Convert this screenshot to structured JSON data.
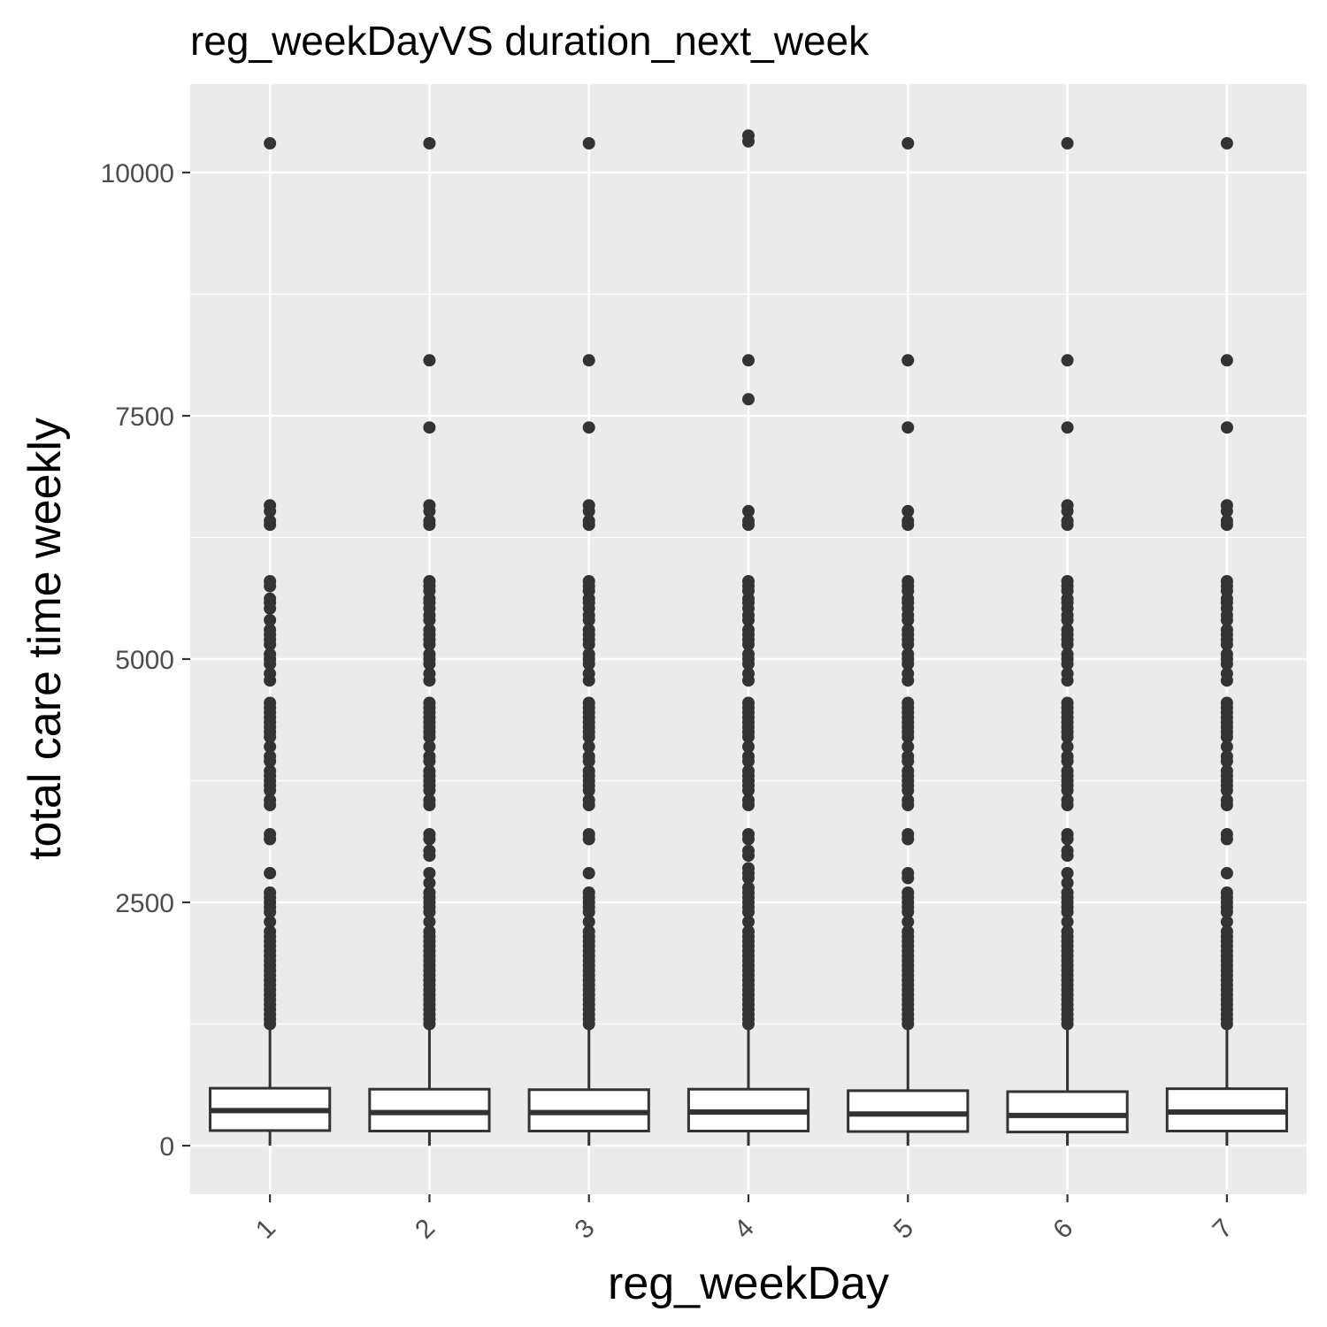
{
  "chart_data": {
    "type": "boxplot",
    "title": "reg_weekDayVS duration_next_week",
    "xlabel": "reg_weekDay",
    "ylabel": "total care time weekly",
    "categories": [
      "1",
      "2",
      "3",
      "4",
      "5",
      "6",
      "7"
    ],
    "y_ticks": [
      0,
      2500,
      5000,
      7500,
      10000
    ],
    "ylim": [
      -500,
      10800
    ],
    "grid": true,
    "colors": {
      "panel": "#ebebeb",
      "grid": "#ffffff",
      "box_fill": "#ffffff",
      "stroke": "#333333",
      "outlier": "#333333"
    },
    "boxes": [
      {
        "category": "1",
        "q1": 155,
        "median": 360,
        "q3": 590,
        "whisker_low": 0,
        "whisker_high": 1200,
        "outliers": [
          10300,
          6580,
          6520,
          6420,
          6380,
          5800,
          5750,
          5620,
          5580,
          5520,
          5400,
          5300,
          5250,
          5200,
          5150,
          5050,
          5000,
          4950,
          4850,
          4780,
          4550,
          4500,
          4450,
          4400,
          4350,
          4300,
          4250,
          4200,
          4100,
          4000,
          3950,
          3850,
          3800,
          3750,
          3700,
          3650,
          3550,
          3500,
          3200,
          3150,
          2800,
          2600,
          2550,
          2500,
          2450,
          2400,
          2300,
          2200,
          2150,
          2100,
          2050,
          2000,
          1950,
          1900,
          1850,
          1800,
          1750,
          1700,
          1650,
          1600,
          1550,
          1500,
          1450,
          1400,
          1350,
          1300,
          1250
        ]
      },
      {
        "category": "2",
        "q1": 150,
        "median": 340,
        "q3": 580,
        "whisker_low": 0,
        "whisker_high": 1200,
        "outliers": [
          10300,
          8070,
          7380,
          6580,
          6520,
          6420,
          6380,
          5800,
          5750,
          5700,
          5620,
          5580,
          5520,
          5450,
          5400,
          5300,
          5250,
          5200,
          5150,
          5050,
          5000,
          4950,
          4850,
          4780,
          4550,
          4500,
          4450,
          4400,
          4350,
          4300,
          4250,
          4200,
          4100,
          4000,
          3950,
          3850,
          3800,
          3750,
          3700,
          3650,
          3550,
          3500,
          3200,
          3150,
          3030,
          2980,
          2800,
          2700,
          2600,
          2550,
          2500,
          2450,
          2400,
          2300,
          2200,
          2150,
          2100,
          2050,
          2000,
          1950,
          1900,
          1850,
          1800,
          1750,
          1700,
          1650,
          1600,
          1550,
          1500,
          1450,
          1400,
          1350,
          1300,
          1250
        ]
      },
      {
        "category": "3",
        "q1": 150,
        "median": 340,
        "q3": 575,
        "whisker_low": 0,
        "whisker_high": 1200,
        "outliers": [
          10300,
          8070,
          7380,
          6580,
          6520,
          6420,
          6380,
          5800,
          5750,
          5700,
          5620,
          5580,
          5520,
          5450,
          5400,
          5300,
          5250,
          5200,
          5150,
          5050,
          5000,
          4950,
          4850,
          4780,
          4550,
          4500,
          4450,
          4400,
          4350,
          4300,
          4250,
          4200,
          4100,
          4000,
          3950,
          3850,
          3800,
          3750,
          3700,
          3650,
          3550,
          3500,
          3200,
          3150,
          2800,
          2600,
          2550,
          2500,
          2450,
          2400,
          2300,
          2200,
          2150,
          2100,
          2050,
          2000,
          1950,
          1900,
          1850,
          1800,
          1750,
          1700,
          1650,
          1600,
          1550,
          1500,
          1450,
          1400,
          1350,
          1300,
          1250
        ]
      },
      {
        "category": "4",
        "q1": 150,
        "median": 345,
        "q3": 580,
        "whisker_low": 0,
        "whisker_high": 1200,
        "outliers": [
          10380,
          10320,
          8070,
          7670,
          6520,
          6420,
          6380,
          5800,
          5750,
          5700,
          5620,
          5580,
          5520,
          5450,
          5400,
          5300,
          5250,
          5200,
          5150,
          5050,
          5000,
          4950,
          4850,
          4780,
          4550,
          4500,
          4450,
          4400,
          4350,
          4300,
          4250,
          4200,
          4100,
          4000,
          3950,
          3850,
          3800,
          3750,
          3700,
          3650,
          3550,
          3500,
          3200,
          3150,
          3030,
          2980,
          2850,
          2800,
          2750,
          2650,
          2600,
          2550,
          2500,
          2450,
          2400,
          2300,
          2200,
          2150,
          2100,
          2050,
          2000,
          1950,
          1900,
          1850,
          1800,
          1750,
          1700,
          1650,
          1600,
          1550,
          1500,
          1450,
          1400,
          1350,
          1300,
          1250
        ]
      },
      {
        "category": "5",
        "q1": 145,
        "median": 325,
        "q3": 565,
        "whisker_low": 0,
        "whisker_high": 1200,
        "outliers": [
          10300,
          8070,
          7380,
          6520,
          6420,
          6380,
          5800,
          5750,
          5700,
          5620,
          5580,
          5520,
          5450,
          5400,
          5300,
          5250,
          5200,
          5150,
          5050,
          5000,
          4950,
          4850,
          4780,
          4550,
          4500,
          4450,
          4400,
          4350,
          4300,
          4250,
          4200,
          4100,
          4000,
          3950,
          3850,
          3800,
          3750,
          3700,
          3650,
          3550,
          3500,
          3200,
          3150,
          2800,
          2750,
          2600,
          2550,
          2500,
          2450,
          2400,
          2300,
          2200,
          2150,
          2100,
          2050,
          2000,
          1950,
          1900,
          1850,
          1800,
          1750,
          1700,
          1650,
          1600,
          1550,
          1500,
          1450,
          1400,
          1350,
          1300,
          1250
        ]
      },
      {
        "category": "6",
        "q1": 140,
        "median": 310,
        "q3": 555,
        "whisker_low": 0,
        "whisker_high": 1200,
        "outliers": [
          10300,
          8070,
          7380,
          6580,
          6520,
          6420,
          6380,
          5800,
          5750,
          5700,
          5620,
          5580,
          5520,
          5450,
          5400,
          5300,
          5250,
          5200,
          5150,
          5050,
          5000,
          4950,
          4850,
          4780,
          4550,
          4500,
          4450,
          4400,
          4350,
          4300,
          4250,
          4200,
          4100,
          4000,
          3950,
          3850,
          3800,
          3750,
          3700,
          3650,
          3550,
          3500,
          3200,
          3150,
          3030,
          2980,
          2800,
          2700,
          2600,
          2550,
          2500,
          2450,
          2400,
          2300,
          2200,
          2150,
          2100,
          2050,
          2000,
          1950,
          1900,
          1850,
          1800,
          1750,
          1700,
          1650,
          1600,
          1550,
          1500,
          1450,
          1400,
          1350,
          1300,
          1250
        ]
      },
      {
        "category": "7",
        "q1": 150,
        "median": 345,
        "q3": 585,
        "whisker_low": 0,
        "whisker_high": 1200,
        "outliers": [
          10300,
          8070,
          7380,
          6580,
          6520,
          6420,
          6380,
          5800,
          5750,
          5700,
          5620,
          5580,
          5520,
          5450,
          5400,
          5300,
          5250,
          5200,
          5150,
          5050,
          5000,
          4950,
          4850,
          4780,
          4550,
          4500,
          4450,
          4400,
          4350,
          4300,
          4250,
          4200,
          4100,
          4000,
          3950,
          3850,
          3800,
          3750,
          3700,
          3650,
          3550,
          3500,
          3200,
          3150,
          2800,
          2600,
          2550,
          2500,
          2450,
          2400,
          2300,
          2200,
          2150,
          2100,
          2050,
          2000,
          1950,
          1900,
          1850,
          1800,
          1750,
          1700,
          1650,
          1600,
          1550,
          1500,
          1450,
          1400,
          1350,
          1300,
          1250
        ]
      }
    ]
  }
}
